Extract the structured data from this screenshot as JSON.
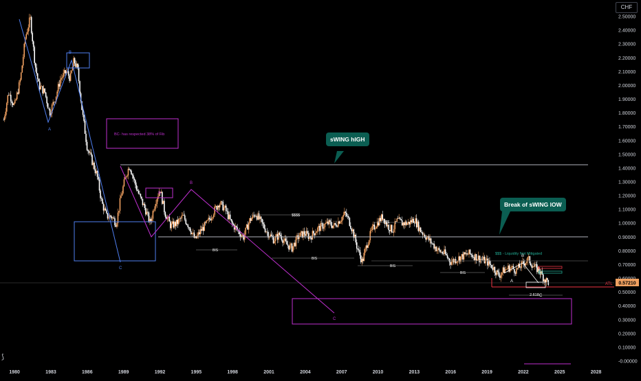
{
  "currency": "CHF",
  "y_labels": [
    "2.50000",
    "2.40000",
    "2.30000",
    "2.20000",
    "2.10000",
    "2.00000",
    "1.90000",
    "1.80000",
    "1.70000",
    "1.60000",
    "1.50000",
    "1.40000",
    "1.30000",
    "1.20000",
    "1.10000",
    "1.00000",
    "0.90000",
    "0.80000",
    "0.70000",
    "0.60000",
    "0.50000",
    "0.40000",
    "0.30000",
    "0.20000",
    "0.10000",
    "-0.00000"
  ],
  "x_labels": [
    "1980",
    "1983",
    "1986",
    "1989",
    "1992",
    "1995",
    "1998",
    "2001",
    "2004",
    "2007",
    "2010",
    "2013",
    "2016",
    "2019",
    "2022",
    "2025",
    "2028"
  ],
  "price_badge": "0.57210",
  "atl_label": "ATL",
  "annotations": {
    "swing_high": "sWING hIGH",
    "break_swing_low": "Break of sWING lOW",
    "bc_note": "BC- has respected 38% of Fib",
    "liquidity": "$$$ - Liquidity Not Mitigated",
    "fib_level": "2.618",
    "dollars_1": "$$$$",
    "dollars_2": "$$$",
    "bis": "BIS",
    "wave_a": "A",
    "wave_b": "B",
    "wave_c": "C"
  },
  "colors": {
    "up_candle": "#f0a060",
    "down_candle": "#ffffff",
    "wave_blue": "#4f7ff0",
    "wave_magenta": "#c030d0",
    "callout_bg": "#0b5e52",
    "atl_red": "#f23645",
    "price_badge": "#f0a060"
  },
  "chart_data": {
    "type": "candlestick",
    "x_unit": "year",
    "y_unit": "price",
    "xlim": [
      1978.8,
      2029.5
    ],
    "ylim": [
      -0.02,
      2.58
    ],
    "grid": false,
    "levels": [
      {
        "name": "sWING hIGH",
        "value": 1.43
      },
      {
        "name": "swing low",
        "value": 0.9
      },
      {
        "name": "$$$ - Liquidity Not Mitigated",
        "value": 0.73
      },
      {
        "name": "ATL",
        "value": 0.544
      }
    ],
    "price_path": [
      [
        1979.1,
        1.75
      ],
      [
        1979.5,
        1.95
      ],
      [
        1980.0,
        1.85
      ],
      [
        1980.5,
        2.05
      ],
      [
        1980.9,
        2.35
      ],
      [
        1981.3,
        2.49
      ],
      [
        1981.7,
        2.15
      ],
      [
        1982.0,
        2.0
      ],
      [
        1982.5,
        1.95
      ],
      [
        1982.9,
        1.8
      ],
      [
        1983.4,
        1.92
      ],
      [
        1983.8,
        2.05
      ],
      [
        1984.3,
        2.1
      ],
      [
        1984.6,
        2.05
      ],
      [
        1984.9,
        2.18
      ],
      [
        1985.2,
        2.12
      ],
      [
        1985.6,
        1.8
      ],
      [
        1986.0,
        1.55
      ],
      [
        1986.4,
        1.45
      ],
      [
        1986.8,
        1.35
      ],
      [
        1987.2,
        1.15
      ],
      [
        1987.6,
        1.05
      ],
      [
        1988.0,
        1.05
      ],
      [
        1988.4,
        1.0
      ],
      [
        1988.8,
        1.2
      ],
      [
        1989.2,
        1.35
      ],
      [
        1989.5,
        1.42
      ],
      [
        1989.9,
        1.3
      ],
      [
        1990.3,
        1.2
      ],
      [
        1990.8,
        1.1
      ],
      [
        1991.2,
        1.0
      ],
      [
        1991.6,
        1.15
      ],
      [
        1992.0,
        1.25
      ],
      [
        1992.4,
        1.08
      ],
      [
        1992.9,
        0.98
      ],
      [
        1993.4,
        1.0
      ],
      [
        1993.9,
        1.05
      ],
      [
        1994.4,
        0.98
      ],
      [
        1994.9,
        0.88
      ],
      [
        1995.4,
        0.95
      ],
      [
        1995.9,
        1.0
      ],
      [
        1996.4,
        1.08
      ],
      [
        1996.9,
        1.15
      ],
      [
        1997.4,
        1.1
      ],
      [
        1997.9,
        1.0
      ],
      [
        1998.4,
        0.95
      ],
      [
        1998.9,
        0.9
      ],
      [
        1999.4,
        1.02
      ],
      [
        1999.9,
        1.07
      ],
      [
        2000.4,
        1.0
      ],
      [
        2000.9,
        0.93
      ],
      [
        2001.4,
        0.88
      ],
      [
        2001.9,
        0.92
      ],
      [
        2002.4,
        0.85
      ],
      [
        2002.9,
        0.82
      ],
      [
        2003.4,
        0.9
      ],
      [
        2003.9,
        0.93
      ],
      [
        2004.4,
        0.9
      ],
      [
        2004.9,
        0.95
      ],
      [
        2005.4,
        0.98
      ],
      [
        2005.9,
        1.0
      ],
      [
        2006.4,
        0.98
      ],
      [
        2006.9,
        1.03
      ],
      [
        2007.3,
        1.07
      ],
      [
        2007.6,
        1.02
      ],
      [
        2007.9,
        0.95
      ],
      [
        2008.3,
        0.82
      ],
      [
        2008.7,
        0.72
      ],
      [
        2009.1,
        0.85
      ],
      [
        2009.5,
        0.95
      ],
      [
        2009.9,
        1.0
      ],
      [
        2010.4,
        1.05
      ],
      [
        2010.8,
        0.98
      ],
      [
        2011.2,
        0.95
      ],
      [
        2011.6,
        1.02
      ],
      [
        2012.0,
        1.0
      ],
      [
        2012.5,
        1.0
      ],
      [
        2013.0,
        1.03
      ],
      [
        2013.5,
        0.95
      ],
      [
        2014.0,
        0.9
      ],
      [
        2014.5,
        0.85
      ],
      [
        2015.0,
        0.8
      ],
      [
        2015.5,
        0.78
      ],
      [
        2016.0,
        0.72
      ],
      [
        2016.5,
        0.74
      ],
      [
        2017.0,
        0.76
      ],
      [
        2017.5,
        0.78
      ],
      [
        2018.0,
        0.76
      ],
      [
        2018.5,
        0.74
      ],
      [
        2019.0,
        0.72
      ],
      [
        2019.5,
        0.68
      ],
      [
        2020.0,
        0.62
      ],
      [
        2020.4,
        0.66
      ],
      [
        2020.9,
        0.68
      ],
      [
        2021.4,
        0.66
      ],
      [
        2021.9,
        0.7
      ],
      [
        2022.4,
        0.74
      ],
      [
        2022.9,
        0.68
      ],
      [
        2023.3,
        0.66
      ],
      [
        2023.7,
        0.6
      ],
      [
        2024.1,
        0.57
      ]
    ]
  }
}
